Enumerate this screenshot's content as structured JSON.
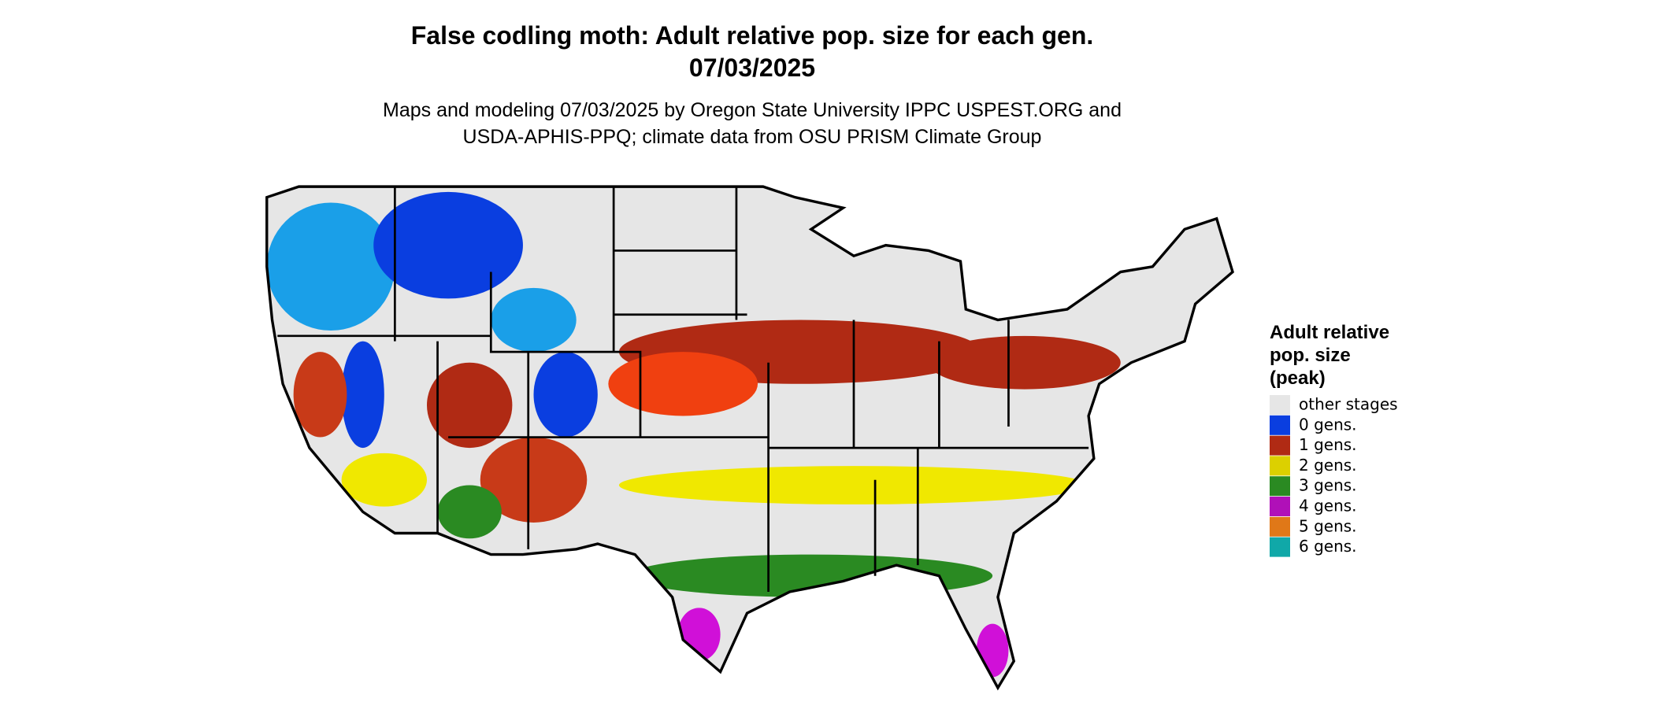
{
  "header": {
    "title": [
      "False codling moth: Adult relative pop. size for each gen.",
      "07/03/2025"
    ],
    "subtitle": [
      "Maps and modeling 07/03/2025 by Oregon State University IPPC USPEST.ORG and",
      "USDA-APHIS-PPQ; climate data from OSU PRISM Climate Group"
    ]
  },
  "legend": {
    "title": [
      "Adult relative",
      "pop. size",
      "(peak)"
    ],
    "items": [
      {
        "label": "other stages",
        "color": "#e6e6e6"
      },
      {
        "label": "0 gens.",
        "color": "#0a3ee0"
      },
      {
        "label": "1 gens.",
        "color": "#b02a14"
      },
      {
        "label": "2 gens.",
        "color": "#dcd000"
      },
      {
        "label": "3 gens.",
        "color": "#2a8a22"
      },
      {
        "label": "4 gens.",
        "color": "#b010b8"
      },
      {
        "label": "5 gens.",
        "color": "#e07818"
      },
      {
        "label": "6 gens.",
        "color": "#10a8a8"
      }
    ]
  }
}
